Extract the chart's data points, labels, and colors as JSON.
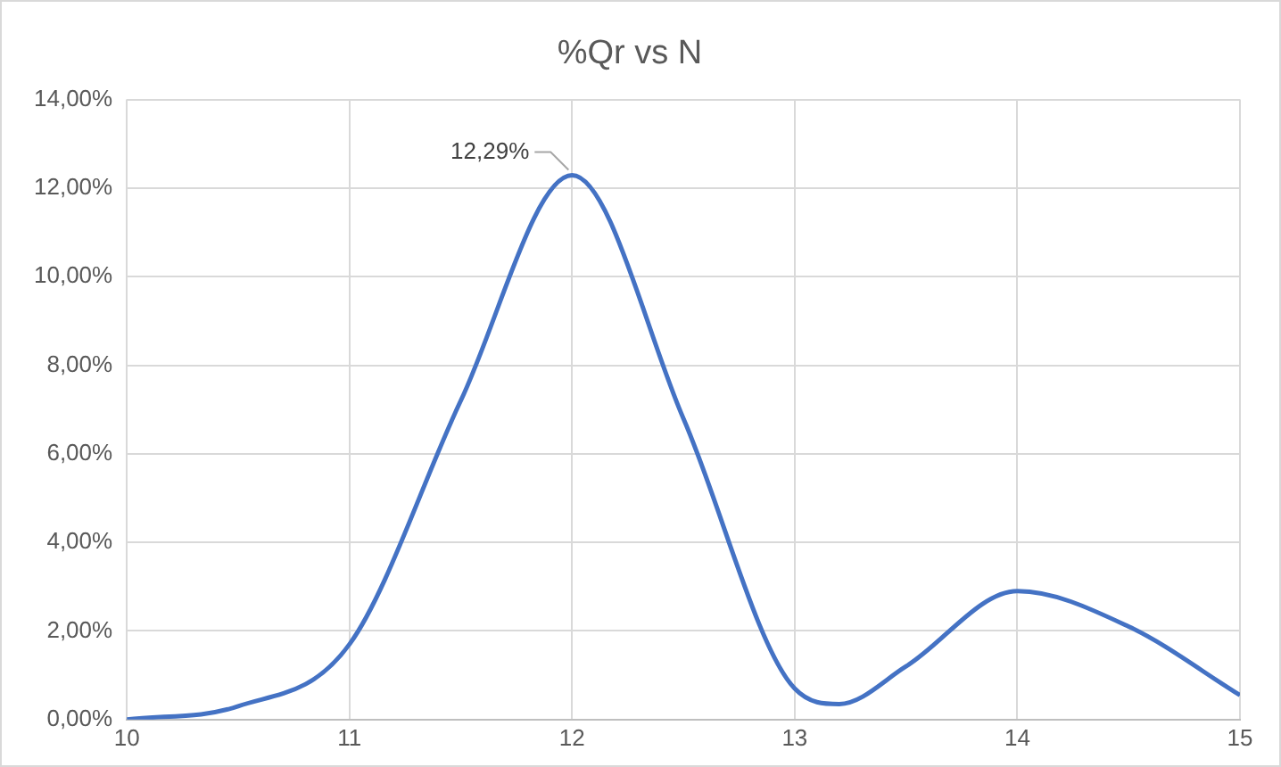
{
  "chart_data": {
    "type": "line",
    "title": "%Qr vs N",
    "x": [
      10,
      10.5,
      11,
      11.5,
      12,
      12.5,
      13,
      13.2,
      13.5,
      14,
      14.5,
      15
    ],
    "series": [
      {
        "color": "#4472c4",
        "values": [
          0,
          0.3,
          1.7,
          7.2,
          12.29,
          6.8,
          0.7,
          0.35,
          1.2,
          2.9,
          2.1,
          0.55
        ],
        "value_labels": [
          null,
          null,
          null,
          null,
          "12,29%",
          null,
          null,
          null,
          null,
          null,
          null,
          null
        ]
      }
    ],
    "xlim": [
      10,
      15
    ],
    "xticks": [
      10,
      11,
      12,
      13,
      14,
      15
    ],
    "ylim": [
      0,
      14
    ],
    "yticks": [
      {
        "value": 0,
        "label": "0,00%"
      },
      {
        "value": 2,
        "label": "2,00%"
      },
      {
        "value": 4,
        "label": "4,00%"
      },
      {
        "value": 6,
        "label": "6,00%"
      },
      {
        "value": 8,
        "label": "8,00%"
      },
      {
        "value": 10,
        "label": "10,00%"
      },
      {
        "value": 12,
        "label": "12,00%"
      },
      {
        "value": 14,
        "label": "14,00%"
      }
    ],
    "grid": true,
    "legend": false,
    "marker": "none",
    "line_style": "solid"
  }
}
